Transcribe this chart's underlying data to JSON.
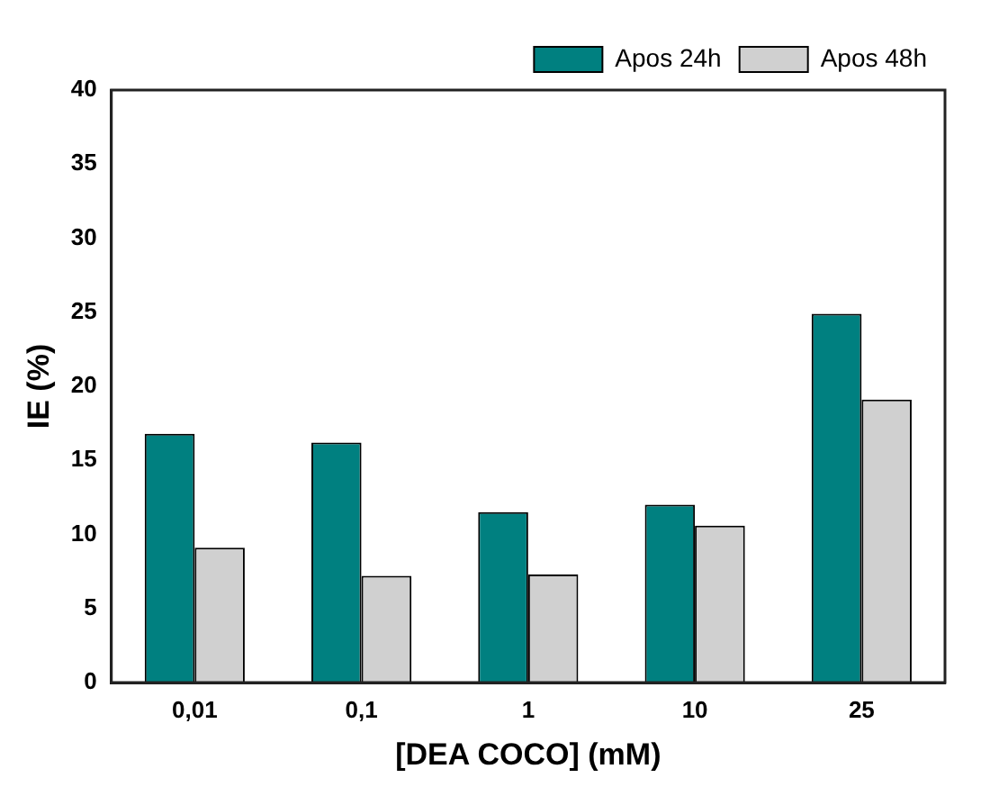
{
  "chart_data": {
    "type": "bar",
    "xlabel": "[DEA COCO] (mM)",
    "ylabel": "IE (%)",
    "categories": [
      "0,01",
      "0,1",
      "1",
      "10",
      "25"
    ],
    "series": [
      {
        "name": "Apos 24h",
        "color": "#008080",
        "values": [
          16.8,
          16.2,
          11.5,
          12.0,
          24.9
        ]
      },
      {
        "name": "Apos 48h",
        "color": "#d0d0d0",
        "values": [
          9.1,
          7.2,
          7.3,
          10.6,
          19.1
        ]
      }
    ],
    "ylim": [
      0,
      40
    ],
    "yticks": [
      0,
      5,
      10,
      15,
      20,
      25,
      30,
      35,
      40
    ],
    "grid": false,
    "legend": "top right"
  }
}
